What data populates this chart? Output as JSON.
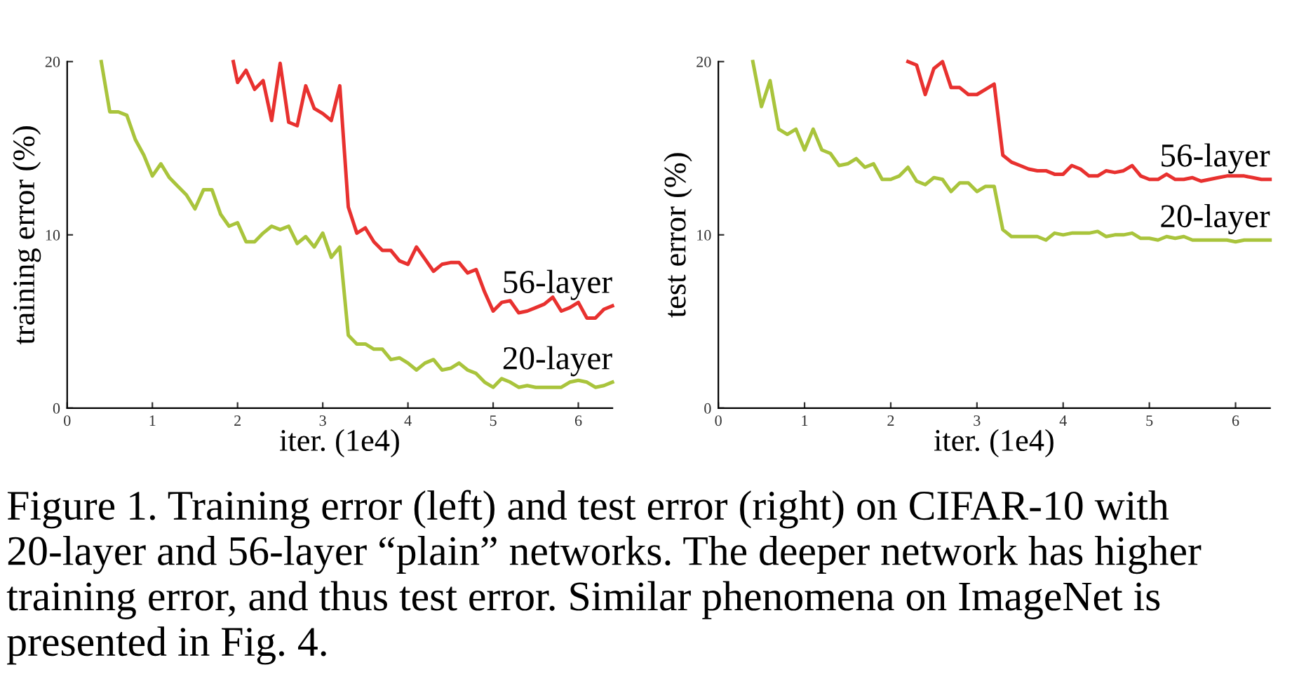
{
  "chart_data": [
    {
      "type": "line",
      "xlabel": "iter. (1e4)",
      "ylabel": "training error (%)",
      "xlim": [
        0,
        6.4
      ],
      "xticks": [
        0,
        1,
        2,
        3,
        4,
        5,
        6
      ],
      "ylim": [
        0,
        20
      ],
      "yticks": [
        0,
        10,
        20
      ],
      "grid": false,
      "legend": false,
      "line_style": "solid",
      "marker": "none",
      "annotations": [
        "Figure 1. Training error (left) and test error (right) on CIFAR-10 with 20-layer and 56-layer “plain” networks. The deeper network has higher training error, and thus test error. Similar phenomena on ImageNet is presented in Fig. 4."
      ],
      "series": [
        {
          "name": "56-layer",
          "color": "#e8312f",
          "x": [
            1.95,
            2.0,
            2.1,
            2.2,
            2.3,
            2.4,
            2.5,
            2.6,
            2.7,
            2.8,
            2.9,
            3.0,
            3.1,
            3.2,
            3.3,
            3.4,
            3.5,
            3.6,
            3.7,
            3.8,
            3.9,
            4.0,
            4.1,
            4.2,
            4.3,
            4.4,
            4.5,
            4.6,
            4.7,
            4.8,
            4.9,
            5.0,
            5.1,
            5.2,
            5.3,
            5.4,
            5.5,
            5.6,
            5.7,
            5.8,
            5.9,
            6.0,
            6.1,
            6.2,
            6.3,
            6.4
          ],
          "values": [
            20,
            18.8,
            19.5,
            18.4,
            18.9,
            16.6,
            19.9,
            16.5,
            16.3,
            18.6,
            17.3,
            17.0,
            16.6,
            18.6,
            11.6,
            10.1,
            10.4,
            9.6,
            9.1,
            9.1,
            8.5,
            8.3,
            9.3,
            8.6,
            7.9,
            8.3,
            8.4,
            8.4,
            7.8,
            8.0,
            6.7,
            5.6,
            6.1,
            6.2,
            5.5,
            5.6,
            5.8,
            6.0,
            6.4,
            5.6,
            5.8,
            6.1,
            5.2,
            5.2,
            5.7,
            5.9
          ]
        },
        {
          "name": "20-layer",
          "color": "#a9c43c",
          "x": [
            0.4,
            0.5,
            0.6,
            0.7,
            0.8,
            0.9,
            1.0,
            1.1,
            1.2,
            1.3,
            1.4,
            1.5,
            1.6,
            1.7,
            1.8,
            1.9,
            2.0,
            2.1,
            2.2,
            2.3,
            2.4,
            2.5,
            2.6,
            2.7,
            2.8,
            2.9,
            3.0,
            3.1,
            3.2,
            3.3,
            3.4,
            3.5,
            3.6,
            3.7,
            3.8,
            3.9,
            4.0,
            4.1,
            4.2,
            4.3,
            4.4,
            4.5,
            4.6,
            4.7,
            4.8,
            4.9,
            5.0,
            5.1,
            5.2,
            5.3,
            5.4,
            5.5,
            5.6,
            5.7,
            5.8,
            5.9,
            6.0,
            6.1,
            6.2,
            6.3,
            6.4
          ],
          "values": [
            20,
            17.1,
            17.1,
            16.9,
            15.5,
            14.6,
            13.4,
            14.1,
            13.3,
            12.8,
            12.3,
            11.5,
            12.6,
            12.6,
            11.2,
            10.5,
            10.7,
            9.6,
            9.6,
            10.1,
            10.5,
            10.3,
            10.5,
            9.5,
            9.9,
            9.3,
            10.1,
            8.7,
            9.3,
            4.2,
            3.7,
            3.7,
            3.4,
            3.4,
            2.8,
            2.9,
            2.6,
            2.2,
            2.6,
            2.8,
            2.2,
            2.3,
            2.6,
            2.2,
            2.0,
            1.5,
            1.2,
            1.7,
            1.5,
            1.2,
            1.3,
            1.2,
            1.2,
            1.2,
            1.2,
            1.5,
            1.6,
            1.5,
            1.2,
            1.3,
            1.5
          ]
        }
      ]
    },
    {
      "type": "line",
      "xlabel": "iter. (1e4)",
      "ylabel": "test error (%)",
      "xlim": [
        0,
        6.4
      ],
      "xticks": [
        0,
        1,
        2,
        3,
        4,
        5,
        6
      ],
      "ylim": [
        0,
        20
      ],
      "yticks": [
        0,
        10,
        20
      ],
      "grid": false,
      "legend": false,
      "line_style": "solid",
      "marker": "none",
      "series": [
        {
          "name": "56-layer",
          "color": "#e8312f",
          "x": [
            2.2,
            2.3,
            2.4,
            2.5,
            2.6,
            2.7,
            2.8,
            2.9,
            3.0,
            3.1,
            3.2,
            3.3,
            3.4,
            3.5,
            3.6,
            3.7,
            3.8,
            3.9,
            4.0,
            4.1,
            4.2,
            4.3,
            4.4,
            4.5,
            4.6,
            4.7,
            4.8,
            4.9,
            5.0,
            5.1,
            5.2,
            5.3,
            5.4,
            5.5,
            5.6,
            5.7,
            5.8,
            5.9,
            6.0,
            6.1,
            6.2,
            6.3,
            6.4
          ],
          "values": [
            20,
            19.8,
            18.1,
            19.6,
            20,
            18.5,
            18.5,
            18.1,
            18.1,
            18.4,
            18.7,
            14.6,
            14.2,
            14.0,
            13.8,
            13.7,
            13.7,
            13.5,
            13.5,
            14.0,
            13.8,
            13.4,
            13.4,
            13.7,
            13.6,
            13.7,
            14.0,
            13.4,
            13.2,
            13.2,
            13.5,
            13.2,
            13.2,
            13.3,
            13.1,
            13.2,
            13.3,
            13.4,
            13.4,
            13.4,
            13.3,
            13.2,
            13.2
          ]
        },
        {
          "name": "20-layer",
          "color": "#a9c43c",
          "x": [
            0.4,
            0.5,
            0.6,
            0.7,
            0.8,
            0.9,
            1.0,
            1.1,
            1.2,
            1.3,
            1.4,
            1.5,
            1.6,
            1.7,
            1.8,
            1.9,
            2.0,
            2.1,
            2.2,
            2.3,
            2.4,
            2.5,
            2.6,
            2.7,
            2.8,
            2.9,
            3.0,
            3.1,
            3.2,
            3.3,
            3.4,
            3.5,
            3.6,
            3.7,
            3.8,
            3.9,
            4.0,
            4.1,
            4.2,
            4.3,
            4.4,
            4.5,
            4.6,
            4.7,
            4.8,
            4.9,
            5.0,
            5.1,
            5.2,
            5.3,
            5.4,
            5.5,
            5.6,
            5.7,
            5.8,
            5.9,
            6.0,
            6.1,
            6.2,
            6.3,
            6.4
          ],
          "values": [
            20,
            17.4,
            18.9,
            16.1,
            15.8,
            16.1,
            14.9,
            16.1,
            14.9,
            14.7,
            14.0,
            14.1,
            14.4,
            13.9,
            14.1,
            13.2,
            13.2,
            13.4,
            13.9,
            13.1,
            12.9,
            13.3,
            13.2,
            12.5,
            13.0,
            13.0,
            12.5,
            12.8,
            12.8,
            10.3,
            9.9,
            9.9,
            9.9,
            9.9,
            9.7,
            10.1,
            10.0,
            10.1,
            10.1,
            10.1,
            10.2,
            9.9,
            10.0,
            10.0,
            10.1,
            9.8,
            9.8,
            9.7,
            9.9,
            9.8,
            9.9,
            9.7,
            9.7,
            9.7,
            9.7,
            9.7,
            9.6,
            9.7,
            9.7,
            9.7,
            9.7
          ]
        }
      ]
    }
  ]
}
